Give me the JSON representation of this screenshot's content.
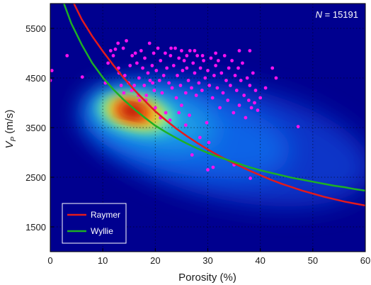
{
  "chart_data": {
    "type": "scatter",
    "xlabel": "Porosity (%)",
    "ylabel_main": "V",
    "ylabel_sub": "P",
    "ylabel_unit": " (m/s)",
    "xlim": [
      0,
      60
    ],
    "ylim": [
      1000,
      6000
    ],
    "x_ticks": [
      "0",
      "10",
      "20",
      "30",
      "40",
      "50",
      "60"
    ],
    "y_ticks": [
      "1500",
      "2500",
      "3500",
      "4500",
      "5500"
    ],
    "annotation": {
      "var": "N",
      "value": " = 15191"
    },
    "grid": "dotted",
    "legend_position": "bottom-left",
    "background_color": "#00008f",
    "density_peak": {
      "x": 16.5,
      "y": 3820
    },
    "series": [
      {
        "name": "Raymer",
        "color": "#e41a1c",
        "points": [
          [
            4.5,
            6000
          ],
          [
            6,
            5680
          ],
          [
            8,
            5340
          ],
          [
            10,
            5040
          ],
          [
            12,
            4760
          ],
          [
            14,
            4500
          ],
          [
            16,
            4260
          ],
          [
            18,
            4040
          ],
          [
            20,
            3830
          ],
          [
            22,
            3650
          ],
          [
            24,
            3480
          ],
          [
            26,
            3330
          ],
          [
            28,
            3190
          ],
          [
            30,
            3060
          ],
          [
            32,
            2940
          ],
          [
            34,
            2830
          ],
          [
            36,
            2730
          ],
          [
            38,
            2630
          ],
          [
            40,
            2540
          ],
          [
            42,
            2450
          ],
          [
            44,
            2370
          ],
          [
            46,
            2300
          ],
          [
            48,
            2230
          ],
          [
            50,
            2170
          ],
          [
            52,
            2110
          ],
          [
            54,
            2060
          ],
          [
            56,
            2010
          ],
          [
            58,
            1970
          ],
          [
            60,
            1930
          ]
        ]
      },
      {
        "name": "Wyllie",
        "color": "#1db024",
        "points": [
          [
            2.6,
            6000
          ],
          [
            4,
            5600
          ],
          [
            6,
            5170
          ],
          [
            8,
            4800
          ],
          [
            10,
            4510
          ],
          [
            12,
            4270
          ],
          [
            14,
            4060
          ],
          [
            16,
            3870
          ],
          [
            18,
            3700
          ],
          [
            20,
            3540
          ],
          [
            22,
            3410
          ],
          [
            24,
            3290
          ],
          [
            26,
            3180
          ],
          [
            28,
            3080
          ],
          [
            30,
            2990
          ],
          [
            32,
            2910
          ],
          [
            34,
            2840
          ],
          [
            36,
            2770
          ],
          [
            38,
            2700
          ],
          [
            40,
            2640
          ],
          [
            42,
            2590
          ],
          [
            44,
            2540
          ],
          [
            46,
            2490
          ],
          [
            48,
            2450
          ],
          [
            50,
            2410
          ],
          [
            52,
            2370
          ],
          [
            54,
            2330
          ],
          [
            56,
            2300
          ],
          [
            58,
            2260
          ],
          [
            60,
            2230
          ]
        ]
      }
    ],
    "scatter": {
      "name": "",
      "color": "#ff10f0",
      "points": [
        [
          0,
          4450
        ],
        [
          0.3,
          4650
        ],
        [
          3.2,
          4950
        ],
        [
          6.1,
          4520
        ],
        [
          10.5,
          4400
        ],
        [
          11,
          4800
        ],
        [
          11.5,
          5050
        ],
        [
          12.4,
          5080
        ],
        [
          12.9,
          5200
        ],
        [
          13.1,
          4600
        ],
        [
          13.5,
          4350
        ],
        [
          13.9,
          5100
        ],
        [
          14,
          4200
        ],
        [
          14.2,
          4550
        ],
        [
          14.5,
          5250
        ],
        [
          14.9,
          4400
        ],
        [
          15.2,
          4750
        ],
        [
          15.6,
          4950
        ],
        [
          16,
          4350
        ],
        [
          16.2,
          5000
        ],
        [
          16.5,
          4800
        ],
        [
          16.9,
          4500
        ],
        [
          17,
          4050
        ],
        [
          17.3,
          5050
        ],
        [
          17.6,
          4700
        ],
        [
          17.9,
          4350
        ],
        [
          18,
          4900
        ],
        [
          18.3,
          4150
        ],
        [
          18.6,
          4600
        ],
        [
          18.9,
          5200
        ],
        [
          19,
          4450
        ],
        [
          19.4,
          4750
        ],
        [
          19.7,
          5000
        ],
        [
          19.8,
          4250
        ],
        [
          20,
          3900
        ],
        [
          20.2,
          4650
        ],
        [
          20.5,
          5100
        ],
        [
          20.8,
          4450
        ],
        [
          21,
          4850
        ],
        [
          21.3,
          4200
        ],
        [
          21.6,
          4550
        ],
        [
          21.9,
          5000
        ],
        [
          22,
          3800
        ],
        [
          22.2,
          4700
        ],
        [
          22.6,
          4400
        ],
        [
          22.9,
          4950
        ],
        [
          23.2,
          4300
        ],
        [
          23.5,
          4750
        ],
        [
          23.8,
          5100
        ],
        [
          24,
          4100
        ],
        [
          24.2,
          4550
        ],
        [
          24.5,
          4900
        ],
        [
          24.8,
          4350
        ],
        [
          25,
          3950
        ],
        [
          25.2,
          4650
        ],
        [
          25.5,
          4850
        ],
        [
          25.8,
          4200
        ],
        [
          26,
          4700
        ],
        [
          26.3,
          4450
        ],
        [
          26.6,
          5050
        ],
        [
          26.9,
          4300
        ],
        [
          27.2,
          4800
        ],
        [
          27.5,
          4600
        ],
        [
          27.8,
          4150
        ],
        [
          28,
          4950
        ],
        [
          28.3,
          4400
        ],
        [
          28.6,
          4700
        ],
        [
          28.9,
          4250
        ],
        [
          29.2,
          4850
        ],
        [
          29.5,
          4500
        ],
        [
          29.8,
          3600
        ],
        [
          30,
          4650
        ],
        [
          30.3,
          4350
        ],
        [
          30.6,
          4900
        ],
        [
          30.9,
          4100
        ],
        [
          31.2,
          4550
        ],
        [
          31.5,
          4750
        ],
        [
          31.8,
          4300
        ],
        [
          32,
          4850
        ],
        [
          32.3,
          3900
        ],
        [
          32.6,
          4600
        ],
        [
          32.9,
          4200
        ],
        [
          33.2,
          4950
        ],
        [
          33.5,
          4450
        ],
        [
          33.8,
          4050
        ],
        [
          34,
          4700
        ],
        [
          34.3,
          4350
        ],
        [
          34.6,
          4850
        ],
        [
          34.9,
          3800
        ],
        [
          35.2,
          4550
        ],
        [
          35.5,
          4250
        ],
        [
          35.8,
          4700
        ],
        [
          36,
          3950
        ],
        [
          36.3,
          4450
        ],
        [
          36.6,
          4800
        ],
        [
          36.9,
          4150
        ],
        [
          37.2,
          3700
        ],
        [
          37.5,
          4500
        ],
        [
          37.8,
          4050
        ],
        [
          38,
          4350
        ],
        [
          38.3,
          3900
        ],
        [
          38.6,
          4600
        ],
        [
          38.9,
          4000
        ],
        [
          39.1,
          4250
        ],
        [
          39.5,
          3850
        ],
        [
          40,
          4100
        ],
        [
          41,
          4300
        ],
        [
          42.3,
          4700
        ],
        [
          43,
          4500
        ],
        [
          47.2,
          3520
        ],
        [
          30,
          2650
        ],
        [
          31,
          2700
        ],
        [
          38.1,
          2480
        ],
        [
          35,
          2750
        ],
        [
          25.8,
          3550
        ],
        [
          28.5,
          3300
        ],
        [
          30.2,
          3200
        ],
        [
          27,
          2950
        ],
        [
          22.8,
          3650
        ],
        [
          21,
          3700
        ],
        [
          24.5,
          3800
        ],
        [
          26.5,
          3750
        ],
        [
          19.5,
          4400
        ],
        [
          16.8,
          4150
        ],
        [
          15.5,
          4250
        ],
        [
          18.2,
          4050
        ],
        [
          13,
          4700
        ],
        [
          12,
          4950
        ],
        [
          26,
          4950
        ],
        [
          29,
          4950
        ],
        [
          27.5,
          5050
        ],
        [
          25,
          5050
        ],
        [
          23,
          5100
        ],
        [
          31.5,
          5000
        ],
        [
          36,
          5050
        ],
        [
          38,
          5050
        ]
      ]
    },
    "legend": [
      {
        "label": "Raymer",
        "color": "#e41a1c"
      },
      {
        "label": "Wyllie",
        "color": "#1db024"
      }
    ]
  }
}
